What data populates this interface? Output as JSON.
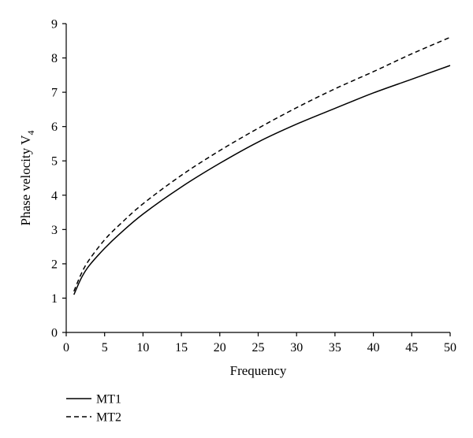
{
  "chart_data": {
    "type": "line",
    "title": "",
    "xlabel": "Frequency",
    "ylabel": "Phase velocity V",
    "ylabel_subscript": "4",
    "xlim": [
      0,
      50
    ],
    "ylim": [
      0,
      9
    ],
    "xticks": [
      0,
      5,
      10,
      15,
      20,
      25,
      30,
      35,
      40,
      45,
      50
    ],
    "yticks": [
      0,
      1,
      2,
      3,
      4,
      5,
      6,
      7,
      8,
      9
    ],
    "grid": false,
    "legend_position": "bottom-left, below plot",
    "series": [
      {
        "name": "MT1",
        "line_style": "solid",
        "color": "#000000",
        "x": [
          1,
          2,
          3,
          5,
          7,
          10,
          15,
          20,
          25,
          30,
          35,
          40,
          45,
          50
        ],
        "y": [
          1.1,
          1.6,
          1.95,
          2.45,
          2.88,
          3.45,
          4.24,
          4.93,
          5.55,
          6.07,
          6.53,
          6.98,
          7.38,
          7.78
        ]
      },
      {
        "name": "MT2",
        "line_style": "dashed",
        "color": "#000000",
        "x": [
          1,
          2,
          3,
          5,
          7,
          10,
          15,
          20,
          25,
          30,
          35,
          40,
          45,
          50
        ],
        "y": [
          1.2,
          1.73,
          2.12,
          2.7,
          3.15,
          3.75,
          4.58,
          5.3,
          5.95,
          6.55,
          7.1,
          7.6,
          8.12,
          8.6
        ]
      }
    ]
  }
}
